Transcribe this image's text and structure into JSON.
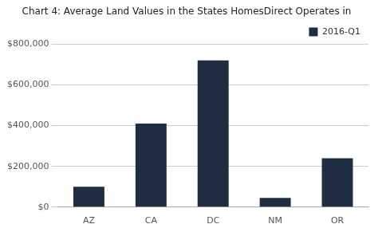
{
  "chart_data": {
    "type": "bar",
    "title": "Chart 4: Average Land Values in the States HomesDirect Operates in",
    "categories": [
      "AZ",
      "CA",
      "DC",
      "NM",
      "OR"
    ],
    "series": [
      {
        "name": "2016-Q1",
        "color": "#1e2d40",
        "values": [
          100000,
          410000,
          720000,
          45000,
          240000
        ]
      }
    ],
    "ylim": [
      0,
      800000
    ],
    "yticks": [
      {
        "value": 0,
        "label": "$0"
      },
      {
        "value": 200000,
        "label": "$200,000"
      },
      {
        "value": 400000,
        "label": "$400,000"
      },
      {
        "value": 600000,
        "label": "$600,000"
      },
      {
        "value": 800000,
        "label": "$800,000"
      }
    ],
    "grid": true,
    "legend": "upper right"
  }
}
